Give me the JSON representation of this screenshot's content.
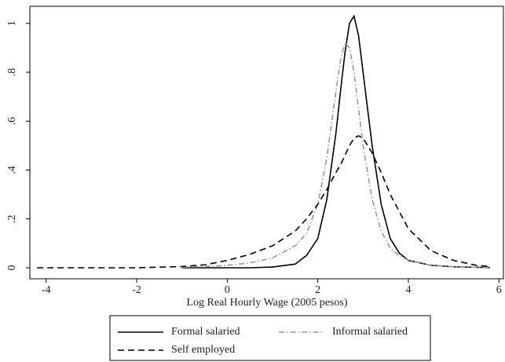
{
  "chart_data": {
    "type": "line",
    "x_label": "Log Real Hourly Wage (2005 pesos)",
    "x": [
      -4.2,
      -3,
      -2,
      -1,
      -0.5,
      0,
      0.5,
      1,
      1.5,
      1.75,
      2,
      2.2,
      2.4,
      2.5,
      2.6,
      2.7,
      2.8,
      2.9,
      3,
      3.2,
      3.4,
      3.6,
      3.8,
      4,
      4.5,
      5,
      5.5,
      5.8
    ],
    "series": [
      {
        "name": "Formal salaried",
        "color": "#000000",
        "dash": "solid",
        "values": [
          null,
          null,
          null,
          0,
          0,
          0,
          0,
          0.003,
          0.015,
          0.05,
          0.12,
          0.28,
          0.55,
          0.72,
          0.88,
          1.0,
          1.03,
          0.95,
          0.8,
          0.5,
          0.26,
          0.12,
          0.06,
          0.03,
          0.01,
          0.004,
          0.002,
          0.001
        ]
      },
      {
        "name": "Informal salaried",
        "color": "#999999",
        "dash": "dashdot",
        "values": [
          null,
          null,
          null,
          0.002,
          0.005,
          0.01,
          0.02,
          0.04,
          0.09,
          0.14,
          0.26,
          0.45,
          0.72,
          0.85,
          0.92,
          0.9,
          0.8,
          0.65,
          0.5,
          0.28,
          0.15,
          0.08,
          0.05,
          0.03,
          0.01,
          0.004,
          0.002,
          0.001
        ]
      },
      {
        "name": "Self employed",
        "color": "#000000",
        "dash": "dashed",
        "values": [
          0,
          0,
          0,
          0.005,
          0.012,
          0.03,
          0.055,
          0.09,
          0.15,
          0.2,
          0.26,
          0.32,
          0.39,
          0.42,
          0.46,
          0.5,
          0.53,
          0.54,
          0.53,
          0.47,
          0.39,
          0.3,
          0.23,
          0.16,
          0.07,
          0.03,
          0.01,
          0.005
        ]
      }
    ],
    "xlim": [
      -4.36,
      6.1
    ],
    "xticks": [
      -4,
      -2,
      0,
      2,
      4,
      6
    ],
    "ylim": [
      -0.045,
      1.07
    ],
    "yticks": [
      0,
      {
        "value": 0.2,
        "label": ".2"
      },
      {
        "value": 0.4,
        "label": ".4"
      },
      {
        "value": 0.6,
        "label": ".6"
      },
      {
        "value": 0.8,
        "label": ".8"
      },
      1
    ],
    "grid": false,
    "legend": "bottom"
  }
}
